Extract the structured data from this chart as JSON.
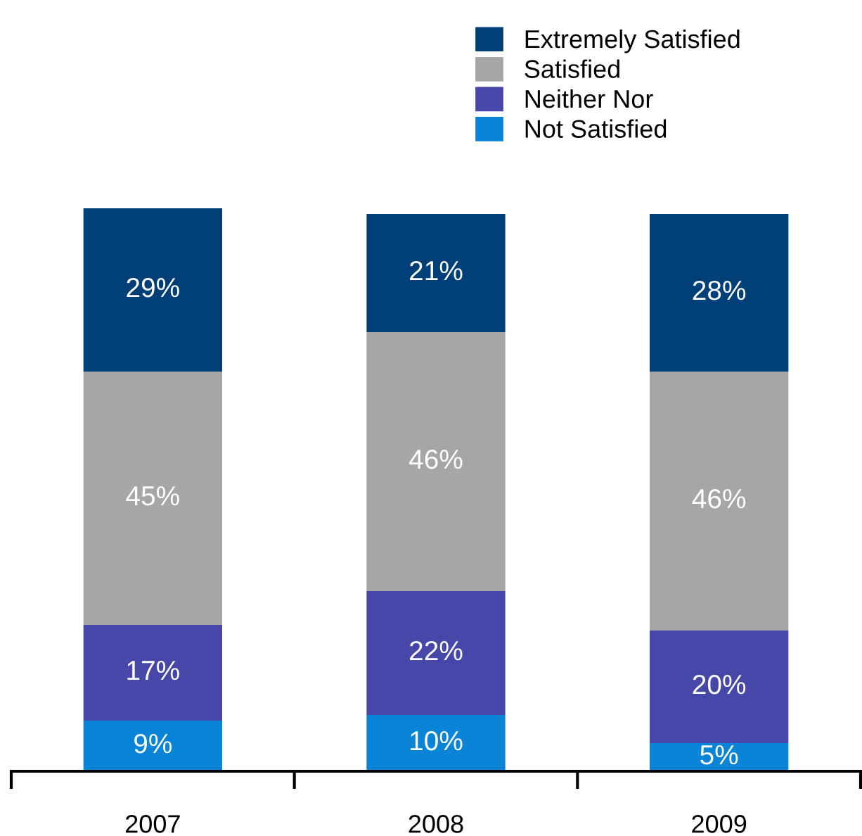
{
  "chart_data": {
    "type": "bar",
    "stacked": true,
    "categories": [
      "2007",
      "2008",
      "2009"
    ],
    "series": [
      {
        "name": "Not Satisfied",
        "color": "#0a84d6",
        "values": [
          9,
          10,
          5
        ],
        "value_labels": [
          "9%",
          "10%",
          "5%"
        ]
      },
      {
        "name": "Neither Nor",
        "color": "#4747a9",
        "values": [
          17,
          22,
          20
        ],
        "value_labels": [
          "17%",
          "22%",
          "20%"
        ]
      },
      {
        "name": "Satisfied",
        "color": "#a6a6a6",
        "values": [
          45,
          46,
          46
        ],
        "value_labels": [
          "45%",
          "46%",
          "46%"
        ]
      },
      {
        "name": "Extremely Satisfied",
        "color": "#003f78",
        "values": [
          29,
          21,
          28
        ],
        "value_labels": [
          "29%",
          "21%",
          "28%"
        ]
      }
    ],
    "legend": "top",
    "grid": false,
    "tick_labels": "x"
  }
}
